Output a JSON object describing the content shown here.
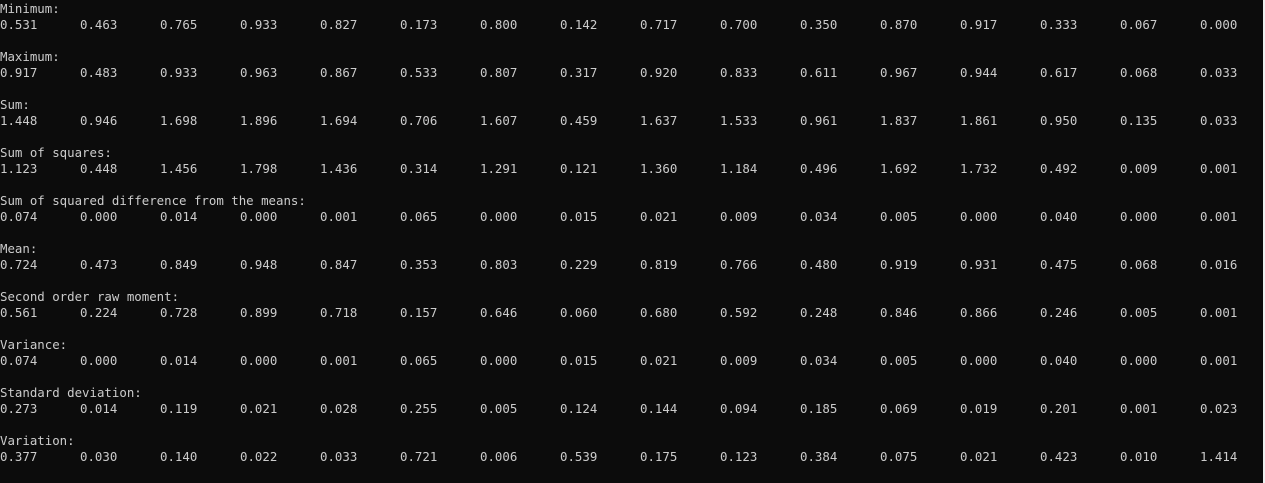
{
  "console": {
    "sections": [
      {
        "label": "Minimum:",
        "values": [
          "0.531",
          "0.463",
          "0.765",
          "0.933",
          "0.827",
          "0.173",
          "0.800",
          "0.142",
          "0.717",
          "0.700",
          "0.350",
          "0.870",
          "0.917",
          "0.333",
          "0.067",
          "0.000"
        ]
      },
      {
        "label": "Maximum:",
        "values": [
          "0.917",
          "0.483",
          "0.933",
          "0.963",
          "0.867",
          "0.533",
          "0.807",
          "0.317",
          "0.920",
          "0.833",
          "0.611",
          "0.967",
          "0.944",
          "0.617",
          "0.068",
          "0.033"
        ]
      },
      {
        "label": "Sum:",
        "values": [
          "1.448",
          "0.946",
          "1.698",
          "1.896",
          "1.694",
          "0.706",
          "1.607",
          "0.459",
          "1.637",
          "1.533",
          "0.961",
          "1.837",
          "1.861",
          "0.950",
          "0.135",
          "0.033"
        ]
      },
      {
        "label": "Sum of squares:",
        "values": [
          "1.123",
          "0.448",
          "1.456",
          "1.798",
          "1.436",
          "0.314",
          "1.291",
          "0.121",
          "1.360",
          "1.184",
          "0.496",
          "1.692",
          "1.732",
          "0.492",
          "0.009",
          "0.001"
        ]
      },
      {
        "label": "Sum of squared difference from the means:",
        "values": [
          "0.074",
          "0.000",
          "0.014",
          "0.000",
          "0.001",
          "0.065",
          "0.000",
          "0.015",
          "0.021",
          "0.009",
          "0.034",
          "0.005",
          "0.000",
          "0.040",
          "0.000",
          "0.001"
        ]
      },
      {
        "label": "Mean:",
        "values": [
          "0.724",
          "0.473",
          "0.849",
          "0.948",
          "0.847",
          "0.353",
          "0.803",
          "0.229",
          "0.819",
          "0.766",
          "0.480",
          "0.919",
          "0.931",
          "0.475",
          "0.068",
          "0.016"
        ]
      },
      {
        "label": "Second order raw moment:",
        "values": [
          "0.561",
          "0.224",
          "0.728",
          "0.899",
          "0.718",
          "0.157",
          "0.646",
          "0.060",
          "0.680",
          "0.592",
          "0.248",
          "0.846",
          "0.866",
          "0.246",
          "0.005",
          "0.001"
        ]
      },
      {
        "label": "Variance:",
        "values": [
          "0.074",
          "0.000",
          "0.014",
          "0.000",
          "0.001",
          "0.065",
          "0.000",
          "0.015",
          "0.021",
          "0.009",
          "0.034",
          "0.005",
          "0.000",
          "0.040",
          "0.000",
          "0.001"
        ]
      },
      {
        "label": "Standard deviation:",
        "values": [
          "0.273",
          "0.014",
          "0.119",
          "0.021",
          "0.028",
          "0.255",
          "0.005",
          "0.124",
          "0.144",
          "0.094",
          "0.185",
          "0.069",
          "0.019",
          "0.201",
          "0.001",
          "0.023"
        ]
      },
      {
        "label": "Variation:",
        "values": [
          "0.377",
          "0.030",
          "0.140",
          "0.022",
          "0.033",
          "0.721",
          "0.006",
          "0.539",
          "0.175",
          "0.123",
          "0.384",
          "0.075",
          "0.021",
          "0.423",
          "0.010",
          "1.414"
        ]
      }
    ]
  }
}
